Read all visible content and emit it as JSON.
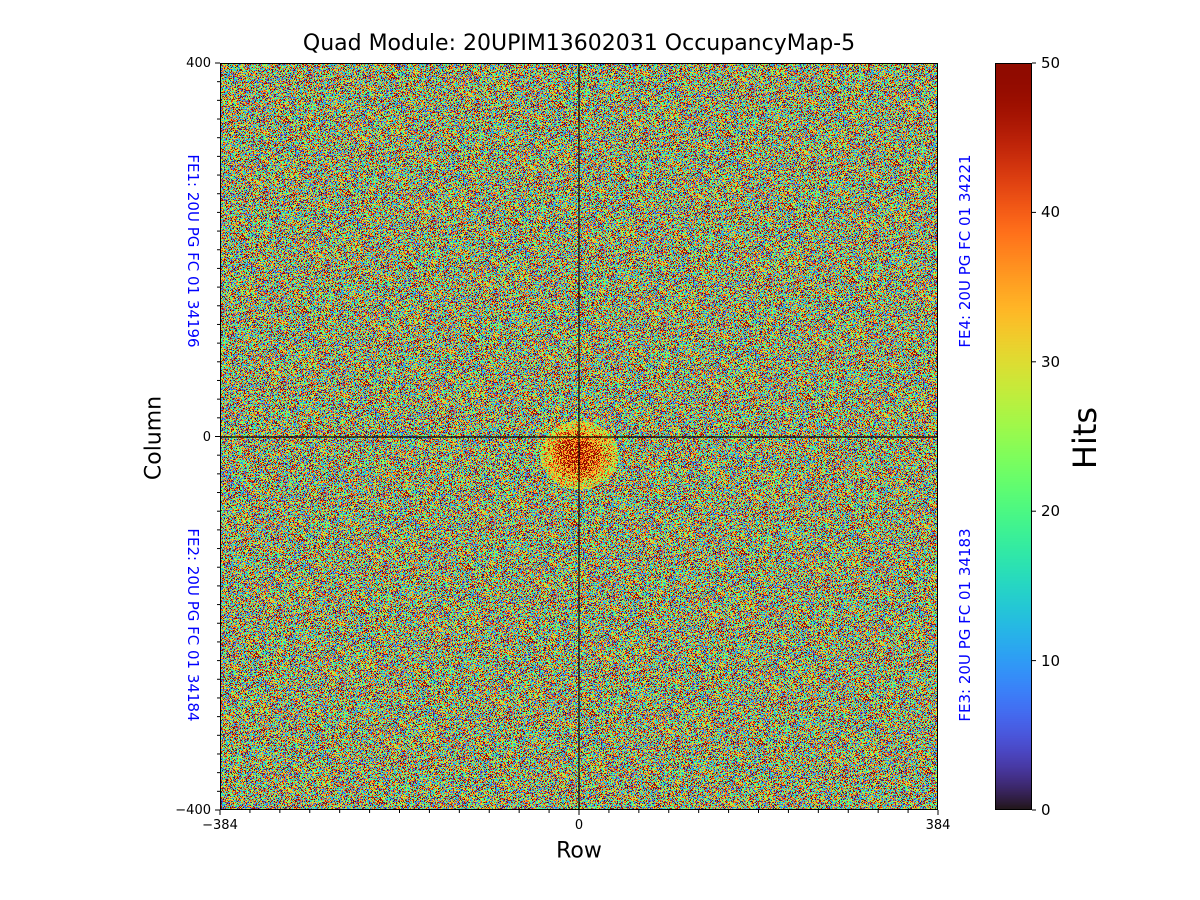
{
  "colors": {
    "fe_label": "#0000ff",
    "axis": "#000000"
  },
  "chart_data": {
    "type": "heatmap",
    "title": "Quad Module: 20UPIM13602031 OccupancyMap-5",
    "xlabel": "Row",
    "ylabel": "Column",
    "xlim": [
      -384,
      384
    ],
    "ylim": [
      -400,
      400
    ],
    "x_ticks": [
      "−384",
      "0",
      "384"
    ],
    "y_ticks": [
      "400",
      "0",
      "−400"
    ],
    "colorbar": {
      "label": "Hits",
      "range": [
        0,
        50
      ],
      "ticks": [
        "0",
        "10",
        "20",
        "30",
        "40",
        "50"
      ],
      "colormap": "turbo"
    },
    "grid": false,
    "regions": [
      {
        "label": "FE1: 20U PG FC 01 34196",
        "quadrant": "top-left"
      },
      {
        "label": "FE2: 20U PG FC 01 34184",
        "quadrant": "bottom-left"
      },
      {
        "label": "FE3: 20U PG FC 01 34183",
        "quadrant": "bottom-right"
      },
      {
        "label": "FE4: 20U PG FC 01 34221",
        "quadrant": "top-right"
      }
    ],
    "divider_lines": {
      "x": 0,
      "y": 0
    },
    "value_distribution": "uniform random noise 0–50 across all pixels, with a denser high-hit blob near the center (x≈0, y≈-20)"
  }
}
